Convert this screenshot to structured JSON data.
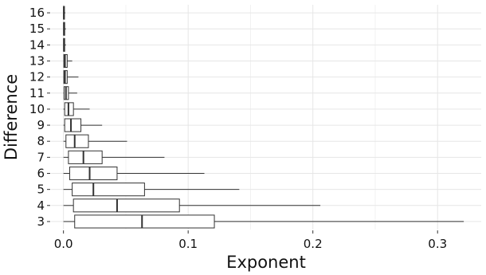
{
  "chart_data": {
    "type": "boxplot",
    "orientation": "horizontal",
    "xlabel": "Exponent",
    "ylabel": "Difference",
    "xlim": [
      -0.01,
      0.335
    ],
    "x_ticks": [
      0.0,
      0.1,
      0.2,
      0.3
    ],
    "x_tick_labels": [
      "0.0",
      "0.1",
      "0.2",
      "0.3"
    ],
    "grid": true,
    "categories": [
      "3",
      "4",
      "5",
      "6",
      "7",
      "8",
      "9",
      "10",
      "11",
      "12",
      "13",
      "14",
      "15",
      "16"
    ],
    "boxes": [
      {
        "category": "3",
        "min": 0.0,
        "q1": 0.009,
        "median": 0.063,
        "q3": 0.121,
        "max": 0.321
      },
      {
        "category": "4",
        "min": 0.0,
        "q1": 0.008,
        "median": 0.043,
        "q3": 0.093,
        "max": 0.206
      },
      {
        "category": "5",
        "min": 0.0,
        "q1": 0.007,
        "median": 0.024,
        "q3": 0.065,
        "max": 0.141
      },
      {
        "category": "6",
        "min": 0.0,
        "q1": 0.005,
        "median": 0.021,
        "q3": 0.043,
        "max": 0.113
      },
      {
        "category": "7",
        "min": 0.0,
        "q1": 0.004,
        "median": 0.016,
        "q3": 0.031,
        "max": 0.081
      },
      {
        "category": "8",
        "min": 0.0,
        "q1": 0.002,
        "median": 0.009,
        "q3": 0.02,
        "max": 0.051
      },
      {
        "category": "9",
        "min": 0.0,
        "q1": 0.001,
        "median": 0.006,
        "q3": 0.014,
        "max": 0.031
      },
      {
        "category": "10",
        "min": 0.0,
        "q1": 0.001,
        "median": 0.004,
        "q3": 0.008,
        "max": 0.021
      },
      {
        "category": "11",
        "min": 0.0,
        "q1": 0.0005,
        "median": 0.002,
        "q3": 0.004,
        "max": 0.011
      },
      {
        "category": "12",
        "min": 0.0,
        "q1": 0.0003,
        "median": 0.0012,
        "q3": 0.003,
        "max": 0.012
      },
      {
        "category": "13",
        "min": 0.0,
        "q1": 0.0003,
        "median": 0.0012,
        "q3": 0.003,
        "max": 0.007
      },
      {
        "category": "14",
        "min": 0.0,
        "q1": 0.0001,
        "median": 0.0004,
        "q3": 0.001,
        "max": 0.002
      },
      {
        "category": "15",
        "min": 0.0,
        "q1": 0.0001,
        "median": 0.0004,
        "q3": 0.001,
        "max": 0.002
      },
      {
        "category": "16",
        "min": 0.0,
        "q1": 0.0001,
        "median": 0.0003,
        "q3": 0.0008,
        "max": 0.0015
      }
    ]
  }
}
